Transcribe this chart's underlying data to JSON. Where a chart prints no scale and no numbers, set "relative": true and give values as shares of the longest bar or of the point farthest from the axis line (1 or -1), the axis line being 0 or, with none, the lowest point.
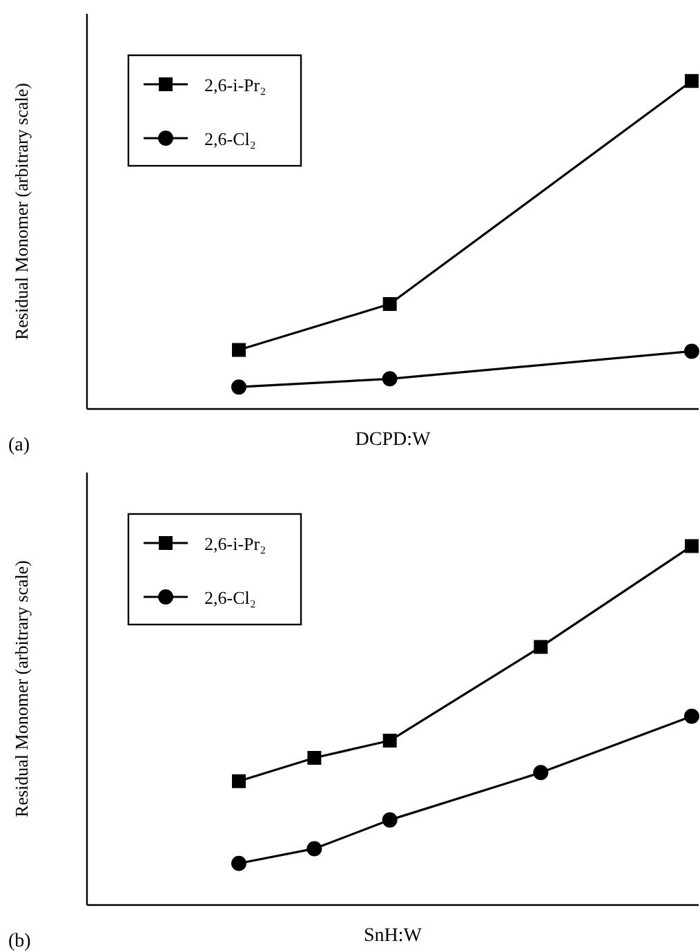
{
  "chart_data": [
    {
      "type": "line",
      "relative": true,
      "xlabel": "DCPD:W",
      "ylabel": "Residual Monomer (arbitrary scale)",
      "annotations": [
        "(a)"
      ],
      "legend": "top left",
      "categories": [
        null,
        null,
        null,
        null,
        null,
        null,
        null
      ],
      "series": [
        {
          "name": "2,6-i-Pr₂",
          "color": "#000000",
          "marker": "square",
          "values": [
            0.18,
            null,
            0.32,
            null,
            null,
            null,
            1
          ]
        },
        {
          "name": "2,6-Cl₂",
          "color": "#000000",
          "marker": "circle",
          "values": [
            0.067,
            null,
            0.092,
            null,
            null,
            null,
            0.176
          ]
        }
      ]
    },
    {
      "type": "line",
      "relative": true,
      "xlabel": "SnH:W",
      "ylabel": "Residual Monomer (arbitrary scale)",
      "annotations": [
        "(b)"
      ],
      "legend": "top left",
      "categories": [
        null,
        null,
        null,
        null,
        null,
        null,
        null
      ],
      "series": [
        {
          "name": "2,6-i-Pr₂",
          "color": "#000000",
          "marker": "square",
          "values": [
            0.345,
            0.41,
            0.458,
            null,
            0.719,
            null,
            1
          ]
        },
        {
          "name": "2,6-Cl₂",
          "color": "#000000",
          "marker": "circle",
          "values": [
            0.116,
            0.157,
            0.237,
            null,
            0.369,
            null,
            0.526
          ]
        }
      ]
    }
  ]
}
